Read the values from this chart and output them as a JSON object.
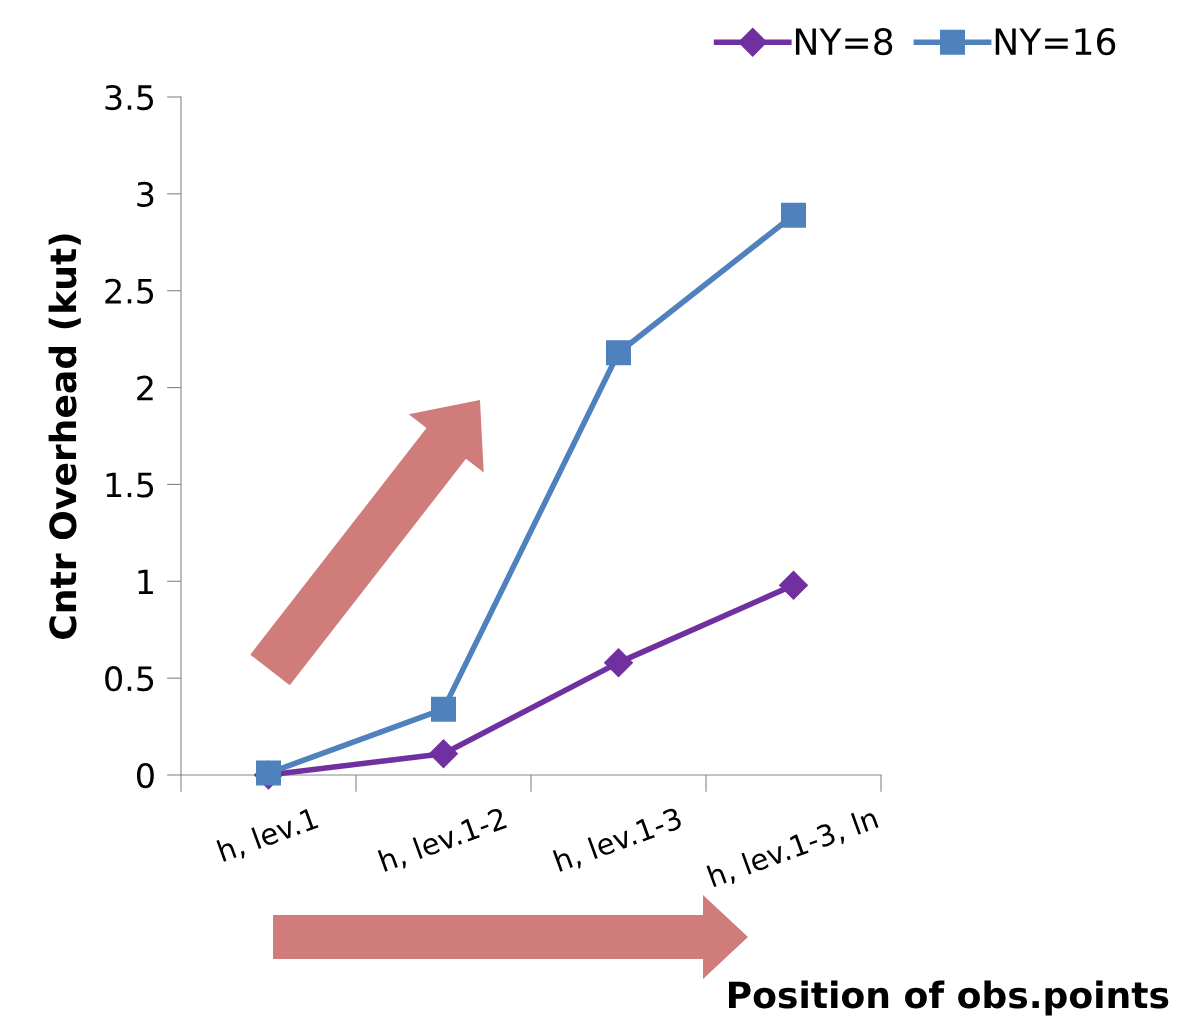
{
  "chart_data": {
    "type": "line",
    "ylabel": "Cntr Overhead (kut)",
    "xlabel": "Position of obs.points",
    "categories": [
      "h, lev.1",
      "h, lev.1-2",
      "h, lev.1-3",
      "h, lev.1-3, ln"
    ],
    "series": [
      {
        "name": "NY=8",
        "color": "#7030a0",
        "marker": "diamond",
        "values": [
          0,
          0.11,
          0.58,
          0.98
        ]
      },
      {
        "name": "NY=16",
        "color": "#4f81bd",
        "marker": "square",
        "values": [
          0.01,
          0.34,
          2.18,
          2.89
        ]
      }
    ],
    "ylim": [
      0,
      3.5
    ],
    "yticks": [
      0,
      0.5,
      1,
      1.5,
      2,
      2.5,
      3,
      3.5
    ],
    "grid": false,
    "legend": "top right"
  }
}
